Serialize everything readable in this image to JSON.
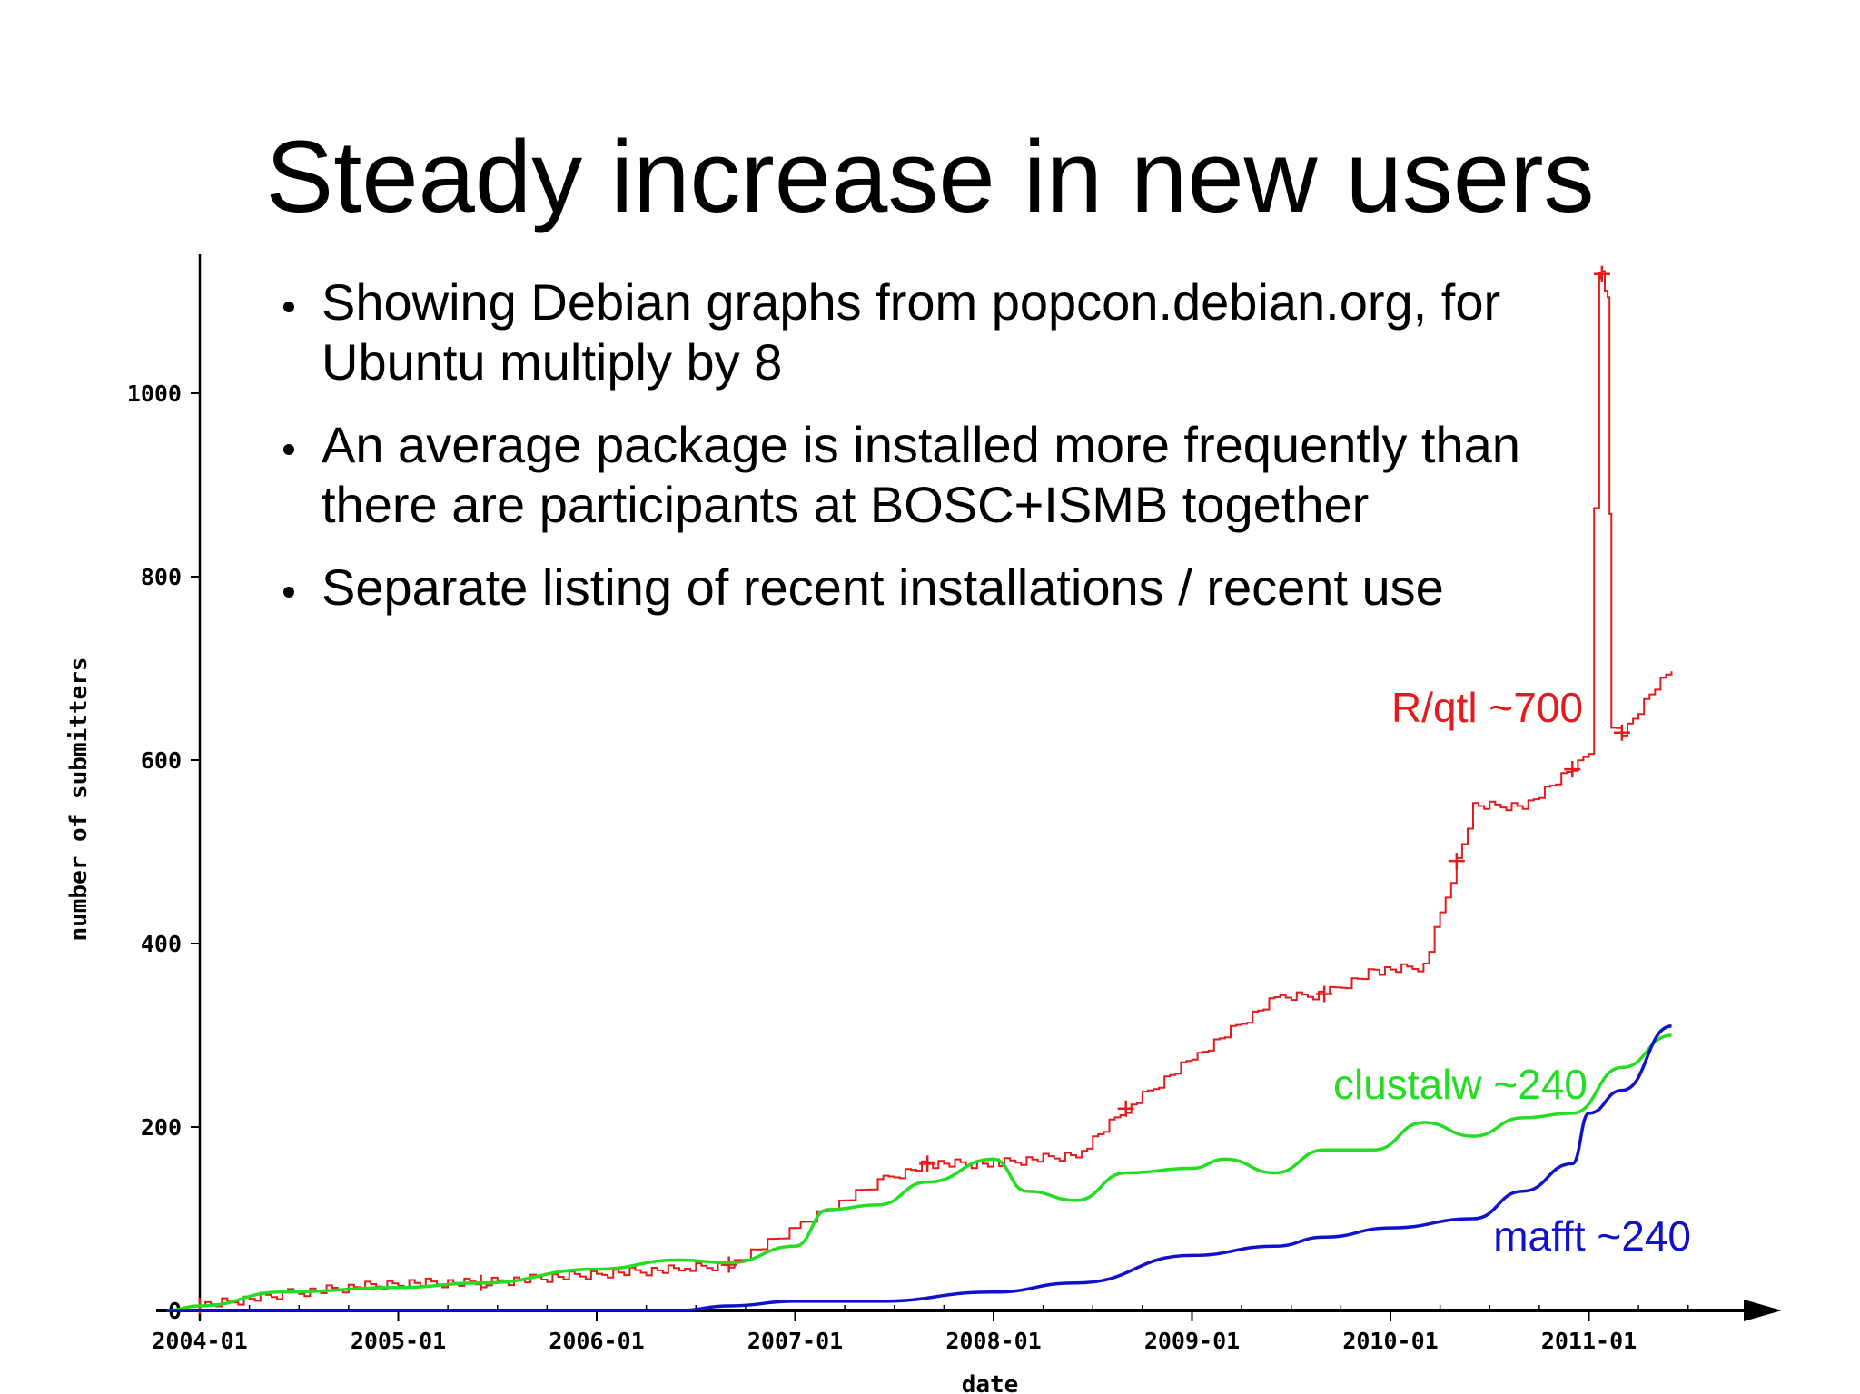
{
  "slide": {
    "title": "Steady increase in new users",
    "bullets": [
      "Showing Debian graphs from popcon.debian.org, for Ubuntu multiply by 8",
      "An average package is installed more frequently than there are participants at BOSC+ISMB together",
      "Separate listing of recent installations / recent use"
    ]
  },
  "chart_data": {
    "type": "line",
    "xlabel": "date",
    "ylabel": "number of submitters",
    "x_ticks": [
      "2004-01",
      "2005-01",
      "2006-01",
      "2007-01",
      "2008-01",
      "2009-01",
      "2010-01",
      "2011-01"
    ],
    "y_ticks": [
      0,
      200,
      400,
      600,
      800,
      1000
    ],
    "ylim": [
      0,
      1160
    ],
    "xlim": [
      "2003-10",
      "2012-02"
    ],
    "annotations": [
      {
        "text": "R/qtl  ~700",
        "color": "#e41a1c",
        "series": "r-qtl"
      },
      {
        "text": "clustalw  ~240",
        "color": "#22dd22",
        "series": "clustalw"
      },
      {
        "text": "mafft  ~240",
        "color": "#1111cc",
        "series": "mafft"
      }
    ],
    "series": [
      {
        "key": "r-qtl",
        "color": "#e41a1c",
        "x": [
          "2004-01",
          "2004-06",
          "2005-01",
          "2005-06",
          "2006-01",
          "2006-06",
          "2006-09",
          "2007-01",
          "2007-06",
          "2007-09",
          "2008-01",
          "2008-06",
          "2008-09",
          "2009-01",
          "2009-06",
          "2009-09",
          "2009-12",
          "2010-03",
          "2010-05",
          "2010-06",
          "2010-09",
          "2010-12",
          "2011-01",
          "2011-01-20",
          "2011-01-25",
          "2011-02-05",
          "2011-02-12",
          "2011-03",
          "2011-05",
          "2011-06"
        ],
        "values": [
          5,
          18,
          30,
          30,
          40,
          45,
          50,
          90,
          140,
          160,
          160,
          170,
          220,
          275,
          340,
          345,
          370,
          375,
          490,
          550,
          550,
          590,
          610,
          1130,
          1130,
          1100,
          640,
          630,
          680,
          700
        ]
      },
      {
        "key": "clustalw",
        "color": "#22dd22",
        "x": [
          "2003-11",
          "2004-01",
          "2004-06",
          "2005-01",
          "2005-06",
          "2006-01",
          "2006-06",
          "2006-09",
          "2007-01",
          "2007-03",
          "2007-06",
          "2007-09",
          "2008-01",
          "2008-03",
          "2008-06",
          "2008-09",
          "2009-01",
          "2009-03",
          "2009-06",
          "2009-09",
          "2009-12",
          "2010-03",
          "2010-06",
          "2010-09",
          "2010-12",
          "2011-03",
          "2011-06"
        ],
        "values": [
          0,
          5,
          20,
          25,
          30,
          45,
          55,
          52,
          70,
          110,
          115,
          140,
          165,
          130,
          120,
          150,
          155,
          165,
          150,
          175,
          175,
          205,
          190,
          210,
          215,
          265,
          300
        ]
      },
      {
        "key": "mafft",
        "color": "#1111cc",
        "x": [
          "2003-11",
          "2004-01",
          "2005-01",
          "2006-01",
          "2006-06",
          "2006-09",
          "2007-01",
          "2007-06",
          "2008-01",
          "2008-06",
          "2009-01",
          "2009-06",
          "2009-09",
          "2010-01",
          "2010-06",
          "2010-09",
          "2010-12",
          "2011-01",
          "2011-03",
          "2011-06"
        ],
        "values": [
          0,
          0,
          0,
          0,
          0,
          5,
          10,
          10,
          20,
          30,
          60,
          70,
          80,
          90,
          100,
          130,
          160,
          215,
          240,
          310
        ]
      }
    ]
  }
}
